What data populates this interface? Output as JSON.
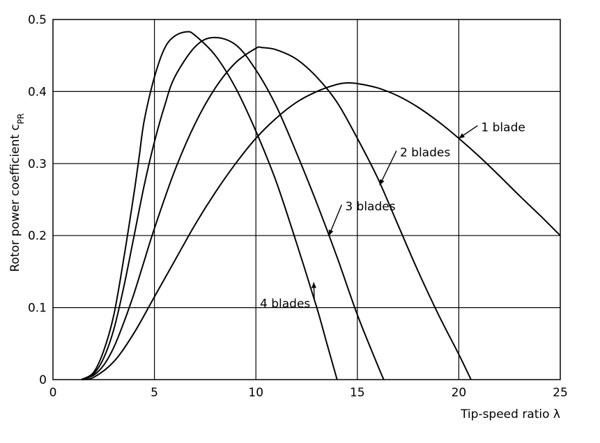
{
  "chart_data": {
    "type": "line",
    "title": "",
    "xlabel": "Tip-speed ratio λ",
    "ylabel": "Rotor power coefficient c",
    "ylabel_subscript": "PR",
    "xlim": [
      0,
      25
    ],
    "ylim": [
      0,
      0.5
    ],
    "xticks": [
      0,
      5,
      10,
      15,
      20,
      25
    ],
    "xtick_labels": [
      "0",
      "5",
      "10",
      "15",
      "20",
      "25"
    ],
    "yticks": [
      0,
      0.1,
      0.2,
      0.3,
      0.4,
      0.5
    ],
    "ytick_labels": [
      "0",
      "0.1",
      "0.2",
      "0.3",
      "0.4",
      "0.5"
    ],
    "grid": true,
    "legend": "inline labels with leader lines",
    "series": [
      {
        "name": "1 blade",
        "x": [
          1.4,
          2,
          3,
          4,
          5,
          6,
          7,
          8,
          9,
          10,
          11,
          12,
          13,
          14,
          14.5,
          15,
          16,
          17,
          18,
          19,
          20,
          21,
          22,
          23,
          24,
          25
        ],
        "y": [
          0,
          0.003,
          0.025,
          0.065,
          0.115,
          0.165,
          0.215,
          0.26,
          0.3,
          0.335,
          0.363,
          0.385,
          0.4,
          0.41,
          0.412,
          0.411,
          0.405,
          0.394,
          0.378,
          0.358,
          0.335,
          0.31,
          0.283,
          0.255,
          0.228,
          0.2
        ]
      },
      {
        "name": "2 blades",
        "x": [
          1.4,
          2,
          2.5,
          3,
          3.5,
          4,
          4.5,
          5,
          6,
          7,
          8,
          9,
          10,
          10.3,
          11,
          12,
          13,
          14,
          15,
          16,
          17,
          18,
          19,
          20,
          20.6
        ],
        "y": [
          0,
          0.006,
          0.02,
          0.045,
          0.08,
          0.12,
          0.165,
          0.21,
          0.29,
          0.355,
          0.405,
          0.44,
          0.46,
          0.461,
          0.458,
          0.445,
          0.42,
          0.385,
          0.335,
          0.28,
          0.215,
          0.15,
          0.09,
          0.035,
          0
        ]
      },
      {
        "name": "3 blades",
        "x": [
          1.4,
          2,
          2.5,
          3,
          3.5,
          4,
          4.5,
          5,
          5.5,
          6,
          7,
          7.9,
          9,
          10,
          11,
          12,
          13,
          14,
          15,
          16,
          16.3
        ],
        "y": [
          0,
          0.008,
          0.03,
          0.07,
          0.13,
          0.2,
          0.27,
          0.33,
          0.38,
          0.42,
          0.462,
          0.475,
          0.465,
          0.43,
          0.38,
          0.315,
          0.245,
          0.17,
          0.09,
          0.02,
          0
        ]
      },
      {
        "name": "4 blades",
        "x": [
          1.4,
          2,
          2.5,
          3,
          3.5,
          4,
          4.25,
          4.5,
          5,
          5.5,
          6,
          6.6,
          7,
          8,
          9,
          10,
          11,
          12,
          13,
          13.5,
          14
        ],
        "y": [
          0,
          0.01,
          0.04,
          0.09,
          0.17,
          0.26,
          0.31,
          0.36,
          0.42,
          0.46,
          0.477,
          0.483,
          0.478,
          0.45,
          0.405,
          0.345,
          0.275,
          0.19,
          0.1,
          0.05,
          0
        ]
      }
    ],
    "annotations": [
      {
        "series": "1 blade",
        "text": "1 blade",
        "text_x": 21.1,
        "text_y": 0.345,
        "point_x": 20.0,
        "point_y": 0.335
      },
      {
        "series": "2 blades",
        "text": "2 blades",
        "text_x": 17.1,
        "text_y": 0.31,
        "point_x": 16.1,
        "point_y": 0.27
      },
      {
        "series": "3 blades",
        "text": "3 blades",
        "text_x": 14.4,
        "text_y": 0.235,
        "point_x": 13.6,
        "point_y": 0.2
      },
      {
        "series": "4 blades",
        "text": "4 blades",
        "text_x": 10.2,
        "text_y": 0.1,
        "point_x": 12.85,
        "point_y": 0.135
      }
    ]
  }
}
